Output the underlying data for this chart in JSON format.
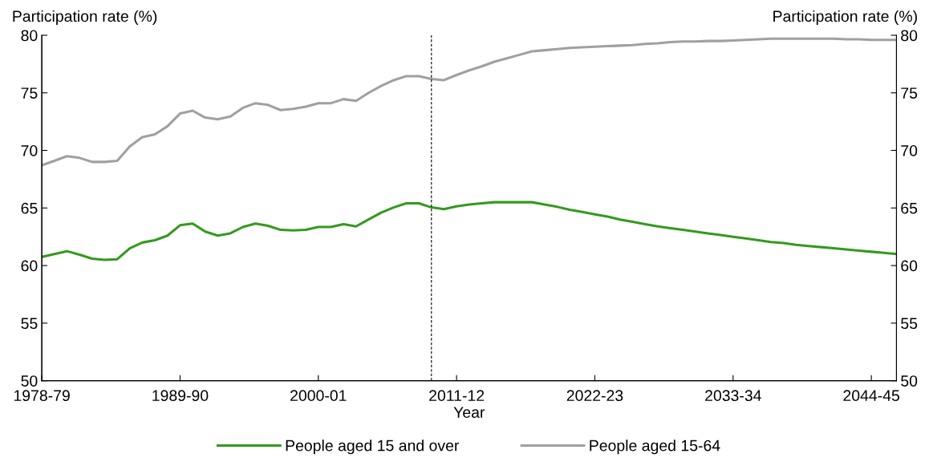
{
  "chart_data": {
    "type": "line",
    "categories": [
      "1978-79",
      null,
      null,
      null,
      null,
      null,
      null,
      null,
      null,
      null,
      null,
      "1989-90",
      null,
      null,
      null,
      null,
      null,
      null,
      null,
      null,
      null,
      null,
      "2000-01",
      null,
      null,
      null,
      null,
      null,
      null,
      null,
      null,
      null,
      null,
      "2011-12",
      null,
      null,
      null,
      null,
      null,
      null,
      null,
      null,
      null,
      null,
      "2022-23",
      null,
      null,
      null,
      null,
      null,
      null,
      null,
      null,
      null,
      null,
      "2033-34",
      null,
      null,
      null,
      null,
      null,
      null,
      null,
      null,
      null,
      null,
      "2044-45",
      null,
      null
    ],
    "series": [
      {
        "name": "People aged 15 and over",
        "color": "#339a1e",
        "values": [
          60.75,
          61.0,
          61.25,
          60.95,
          60.6,
          60.5,
          60.55,
          61.5,
          62.0,
          62.2,
          62.6,
          63.5,
          63.65,
          62.95,
          62.6,
          62.8,
          63.35,
          63.65,
          63.45,
          63.1,
          63.05,
          63.1,
          63.35,
          63.35,
          63.6,
          63.4,
          64.0,
          64.6,
          65.05,
          65.4,
          65.4,
          65.05,
          64.9,
          65.15,
          65.3,
          65.4,
          65.5,
          65.5,
          65.5,
          65.5,
          65.3,
          65.1,
          64.85,
          64.65,
          64.45,
          64.25,
          64.0,
          63.8,
          63.6,
          63.4,
          63.25,
          63.1,
          62.95,
          62.8,
          62.65,
          62.5,
          62.35,
          62.2,
          62.05,
          61.95,
          61.8,
          61.7,
          61.6,
          61.5,
          61.4,
          61.3,
          61.2,
          61.1,
          61.0
        ]
      },
      {
        "name": "People aged 15-64",
        "color": "#a0a0a0",
        "values": [
          68.7,
          69.1,
          69.5,
          69.35,
          69.0,
          69.0,
          69.1,
          70.35,
          71.15,
          71.4,
          72.1,
          73.2,
          73.45,
          72.85,
          72.7,
          72.95,
          73.7,
          74.1,
          73.95,
          73.5,
          73.6,
          73.8,
          74.1,
          74.1,
          74.45,
          74.3,
          75.0,
          75.6,
          76.1,
          76.45,
          76.45,
          76.2,
          76.1,
          76.55,
          76.95,
          77.3,
          77.7,
          78.0,
          78.3,
          78.6,
          78.7,
          78.8,
          78.9,
          78.95,
          79.0,
          79.05,
          79.1,
          79.15,
          79.25,
          79.3,
          79.4,
          79.45,
          79.45,
          79.5,
          79.5,
          79.55,
          79.6,
          79.65,
          79.7,
          79.7,
          79.7,
          79.7,
          79.7,
          79.7,
          79.65,
          79.65,
          79.6,
          79.6,
          79.6
        ]
      }
    ],
    "xlabel": "Year",
    "ylabel": "Participation rate (%)",
    "y2label": "Participation rate (%)",
    "ylim": [
      50,
      80
    ],
    "yticks": [
      50,
      55,
      60,
      65,
      70,
      75,
      80
    ],
    "y2lim": [
      50,
      80
    ],
    "y2ticks": [
      50,
      55,
      60,
      65,
      70,
      75,
      80
    ],
    "legend": "bottom",
    "marker": "none",
    "line_style": "solid"
  }
}
